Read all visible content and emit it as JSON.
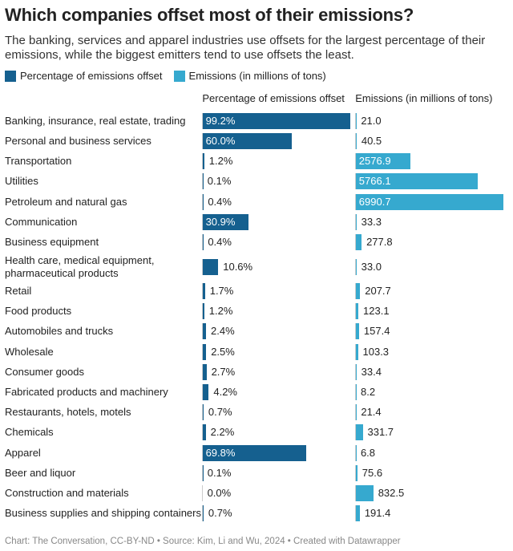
{
  "chart_data": {
    "type": "bar",
    "title": "Which companies offset most of their emissions?",
    "subtitle": "The banking, services and apparel industries use offsets for the largest percentage of their emissions, while the biggest emitters tend to use offsets the least.",
    "categories": [
      "Banking, insurance, real estate, trading",
      "Personal and business services",
      "Transportation",
      "Utilities",
      "Petroleum and natural gas",
      "Communication",
      "Business equipment",
      "Health care, medical equipment, pharmaceutical products",
      "Retail",
      "Food products",
      "Automobiles and trucks",
      "Wholesale",
      "Consumer goods",
      "Fabricated products and machinery",
      "Restaurants, hotels, motels",
      "Chemicals",
      "Apparel",
      "Beer and liquor",
      "Construction and materials",
      "Business supplies and shipping containers"
    ],
    "series": [
      {
        "name": "Percentage of emissions offset",
        "color": "#15608f",
        "values": [
          99.2,
          60.0,
          1.2,
          0.1,
          0.4,
          30.9,
          0.4,
          10.6,
          1.7,
          1.2,
          2.4,
          2.5,
          2.7,
          4.2,
          0.7,
          2.2,
          69.8,
          0.1,
          0.0,
          0.7
        ],
        "value_labels": [
          "99.2%",
          "60.0%",
          "1.2%",
          "0.1%",
          "0.4%",
          "30.9%",
          "0.4%",
          "10.6%",
          "1.7%",
          "1.2%",
          "2.4%",
          "2.5%",
          "2.7%",
          "4.2%",
          "0.7%",
          "2.2%",
          "69.8%",
          "0.1%",
          "0.0%",
          "0.7%"
        ]
      },
      {
        "name": "Emissions (in millions of tons)",
        "color": "#36a9cf",
        "values": [
          21.0,
          40.5,
          2576.9,
          5766.1,
          6990.7,
          33.3,
          277.8,
          33.0,
          207.7,
          123.1,
          157.4,
          103.3,
          33.4,
          8.2,
          21.4,
          331.7,
          6.8,
          75.6,
          832.5,
          191.4
        ],
        "value_labels": [
          "21.0",
          "40.5",
          "2576.9",
          "5766.1",
          "6990.7",
          "33.3",
          "277.8",
          "33.0",
          "207.7",
          "123.1",
          "157.4",
          "103.3",
          "33.4",
          "8.2",
          "21.4",
          "331.7",
          "6.8",
          "75.6",
          "832.5",
          "191.4"
        ]
      }
    ],
    "source": "Chart: The Conversation, CC-BY-ND • Source: Kim, Li and Wu, 2024 • Created with Datawrapper"
  }
}
